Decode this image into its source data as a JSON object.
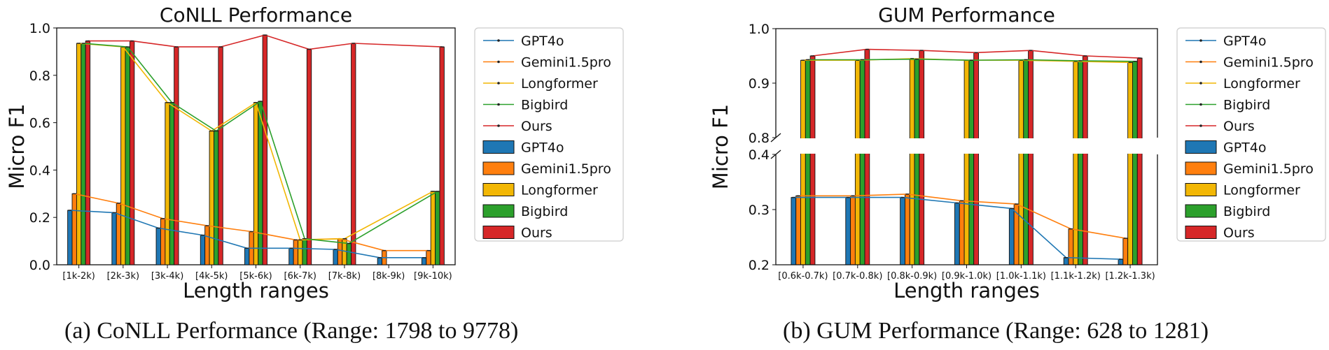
{
  "colors": {
    "GPT4o": "#1f77b4",
    "Gemini1.5pro": "#ff7f0e",
    "Longformer": "#f2b705",
    "Bigbird": "#2ca02c",
    "Ours": "#d62728"
  },
  "captions": {
    "a": "(a) CoNLL Performance (Range: 1798 to 9778)",
    "b": "(b) GUM Performance (Range: 628 to 1281)"
  },
  "chart_data": [
    {
      "type": "bar",
      "title": "CoNLL Performance",
      "xlabel": "Length ranges",
      "ylabel": "Micro F1",
      "ylim": [
        0,
        1.0
      ],
      "yticks": [
        "0.0",
        "0.2",
        "0.4",
        "0.6",
        "0.8",
        "1.0"
      ],
      "grid": false,
      "legend_position": "right",
      "legend_line_labels": [
        "GPT4o",
        "Gemini1.5pro",
        "Longformer",
        "Bigbird",
        "Ours"
      ],
      "legend_bar_labels": [
        "GPT4o",
        "Gemini1.5pro",
        "Longformer",
        "Bigbird",
        "Ours"
      ],
      "categories": [
        "[1k-2k)",
        "[2k-3k)",
        "[3k-4k)",
        "[4k-5k)",
        "[5k-6k)",
        "[6k-7k)",
        "[7k-8k)",
        "[8k-9k)",
        "[9k-10k)"
      ],
      "series": [
        {
          "name": "GPT4o",
          "values": [
            0.23,
            0.22,
            0.155,
            0.125,
            0.07,
            0.07,
            0.065,
            0.03,
            0.03
          ]
        },
        {
          "name": "Gemini1.5pro",
          "values": [
            0.3,
            0.26,
            0.195,
            0.165,
            0.14,
            0.105,
            0.11,
            0.06,
            0.06
          ]
        },
        {
          "name": "Longformer",
          "values": [
            0.935,
            0.92,
            0.685,
            0.565,
            0.685,
            0.105,
            0.11,
            null,
            0.31
          ]
        },
        {
          "name": "Bigbird",
          "values": [
            0.935,
            0.92,
            0.685,
            0.565,
            0.69,
            0.11,
            0.09,
            null,
            0.31
          ]
        },
        {
          "name": "Ours",
          "values": [
            0.945,
            0.945,
            0.92,
            0.92,
            0.97,
            0.91,
            0.935,
            null,
            0.92
          ]
        }
      ]
    },
    {
      "type": "bar",
      "title": "GUM Performance",
      "xlabel": "Length ranges",
      "ylabel": "Micro F1",
      "ylim_upper": [
        0.8,
        1.0
      ],
      "ylim_lower": [
        0.2,
        0.4
      ],
      "yticks_upper": [
        "0.8",
        "0.9",
        "1.0"
      ],
      "yticks_lower": [
        "0.2",
        "0.3",
        "0.4"
      ],
      "broken_axis": true,
      "grid": false,
      "legend_position": "right",
      "legend_line_labels": [
        "GPT4o",
        "Gemini1.5pro",
        "Longformer",
        "Bigbird",
        "Ours"
      ],
      "legend_bar_labels": [
        "GPT4o",
        "Gemini1.5pro",
        "Longformer",
        "Bigbird",
        "Ours"
      ],
      "categories": [
        "[0.6k-0.7k)",
        "[0.7k-0.8k)",
        "[0.8k-0.9k)",
        "[0.9k-1.0k)",
        "[1.0k-1.1k)",
        "[1.1k-1.2k)",
        "[1.2k-1.3k)"
      ],
      "series": [
        {
          "name": "GPT4o",
          "values": [
            0.322,
            0.322,
            0.322,
            0.312,
            0.302,
            0.213,
            0.21
          ]
        },
        {
          "name": "Gemini1.5pro",
          "values": [
            0.325,
            0.325,
            0.328,
            0.316,
            0.31,
            0.265,
            0.248
          ]
        },
        {
          "name": "Longformer",
          "values": [
            0.942,
            0.942,
            0.945,
            0.942,
            0.942,
            0.94,
            0.938
          ]
        },
        {
          "name": "Bigbird",
          "values": [
            0.943,
            0.943,
            0.944,
            0.942,
            0.943,
            0.941,
            0.94
          ]
        },
        {
          "name": "Ours",
          "values": [
            0.95,
            0.962,
            0.96,
            0.956,
            0.96,
            0.95,
            0.946
          ]
        }
      ]
    }
  ]
}
